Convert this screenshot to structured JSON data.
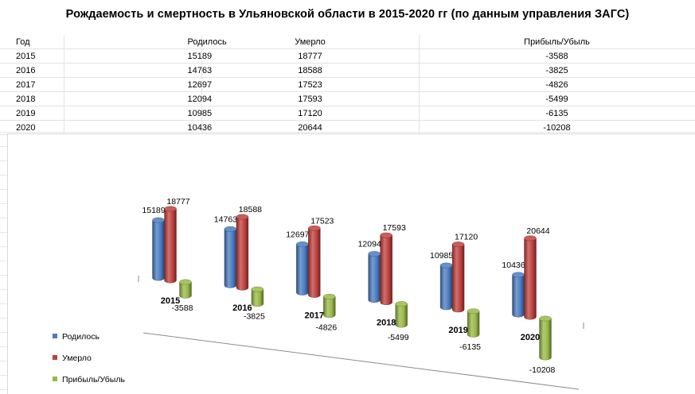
{
  "page_title": "Рождаемость и смертность в Ульяновской области в 2015-2020 гг (по данным управления ЗАГС)",
  "table": {
    "headers": [
      "Год",
      "Родилось",
      "Умерло",
      "Прибыль/Убыль"
    ],
    "rows": [
      [
        "2015",
        "15189",
        "18777",
        "-3588"
      ],
      [
        "2016",
        "14763",
        "18588",
        "-3825"
      ],
      [
        "2017",
        "12697",
        "17523",
        "-4826"
      ],
      [
        "2018",
        "12094",
        "17593",
        "-5499"
      ],
      [
        "2019",
        "10985",
        "17120",
        "-6135"
      ],
      [
        "2020",
        "10436",
        "20644",
        "-10208"
      ]
    ]
  },
  "chart_data": {
    "type": "bar",
    "style": "3d-cylinder",
    "categories": [
      "2015",
      "2016",
      "2017",
      "2018",
      "2019",
      "2020"
    ],
    "series": [
      {
        "name": "Родилось",
        "color": "#4a7cc2",
        "values": [
          15189,
          14763,
          12697,
          12094,
          10985,
          10436
        ]
      },
      {
        "name": "Умерло",
        "color": "#c0403d",
        "values": [
          18777,
          18588,
          17523,
          17593,
          17120,
          20644
        ]
      },
      {
        "name": "Прибыль/Убыль",
        "color": "#98b947",
        "values": [
          -3588,
          -3825,
          -4826,
          -5499,
          -6135,
          -10208
        ]
      }
    ],
    "legend_position": "bottom-left",
    "data_labels": true,
    "grid": false
  }
}
